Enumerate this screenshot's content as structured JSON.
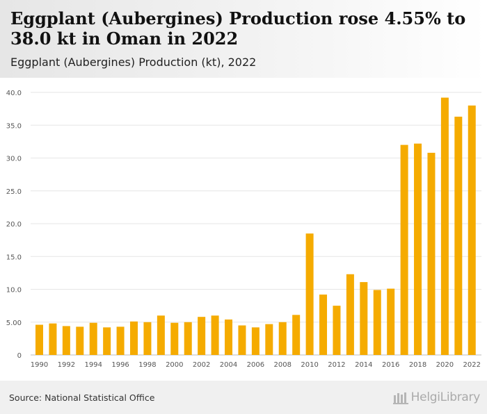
{
  "header": {
    "title": "Eggplant (Aubergines) Production rose 4.55% to 38.0 kt in Oman in 2022",
    "subtitle": "Eggplant (Aubergines) Production (kt), 2022"
  },
  "footer": {
    "source": "Source: National Statistical Office",
    "logo_text": "HelgiLibrary"
  },
  "colors": {
    "bar": "#f5ab00",
    "grid": "#e6e6e6",
    "axis": "#bbbbbb",
    "tick_text": "#555555"
  },
  "chart_data": {
    "type": "bar",
    "title": "Eggplant (Aubergines) Production (kt), 2022",
    "xlabel": "",
    "ylabel": "",
    "ylim": [
      0,
      40
    ],
    "y_ticks": [
      0,
      5,
      10,
      15,
      20,
      25,
      30,
      35,
      40
    ],
    "y_tick_labels": [
      "0",
      "5.00",
      "10.0",
      "15.0",
      "20.0",
      "25.0",
      "30.0",
      "35.0",
      "40.0"
    ],
    "grid": true,
    "legend": "none",
    "categories": [
      "1990",
      "1991",
      "1992",
      "1993",
      "1994",
      "1995",
      "1996",
      "1997",
      "1998",
      "1999",
      "2000",
      "2001",
      "2002",
      "2003",
      "2004",
      "2005",
      "2006",
      "2007",
      "2008",
      "2009",
      "2010",
      "2011",
      "2012",
      "2013",
      "2014",
      "2015",
      "2016",
      "2017",
      "2018",
      "2019",
      "2020",
      "2021",
      "2022"
    ],
    "x_tick_labels": [
      "1990",
      "1992",
      "1994",
      "1996",
      "1998",
      "2000",
      "2002",
      "2004",
      "2006",
      "2008",
      "2010",
      "2012",
      "2014",
      "2016",
      "2018",
      "2020",
      "2022"
    ],
    "values": [
      4.6,
      4.8,
      4.4,
      4.3,
      4.9,
      4.2,
      4.3,
      5.1,
      5.0,
      6.0,
      4.9,
      5.0,
      5.8,
      6.0,
      5.4,
      4.5,
      4.2,
      4.7,
      5.0,
      6.1,
      18.5,
      9.2,
      7.5,
      12.3,
      11.1,
      9.9,
      10.1,
      32.0,
      32.2,
      30.8,
      39.2,
      36.3,
      38.0
    ]
  }
}
